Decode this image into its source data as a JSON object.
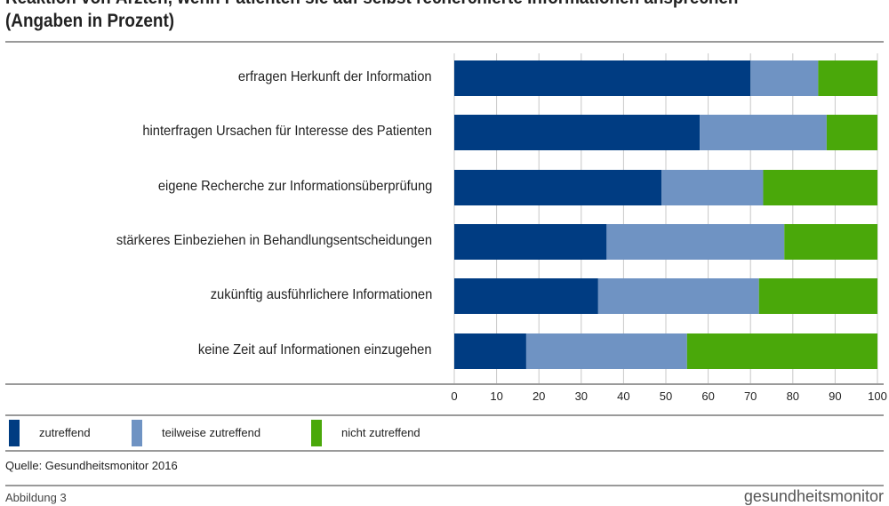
{
  "chart_data": {
    "type": "bar",
    "orientation": "horizontal",
    "stacked": true,
    "title": "Reaktion von Ärzten, wenn Patienten sie auf selbst recherchierte Informationen ansprechen",
    "subtitle": "(Angaben in Prozent)",
    "categories": [
      "erfragen Herkunft der Information",
      "hinterfragen Ursachen für Interesse des Patienten",
      "eigene Recherche zur Informationsüberprüfung",
      "stärkeres Einbeziehen in Behandlungsentscheidungen",
      "zukünftig ausführlichere Informationen",
      "keine Zeit auf Informationen einzugehen"
    ],
    "series": [
      {
        "name": "zutreffend",
        "color": "#003c82",
        "values": [
          70,
          58,
          49,
          36,
          34,
          17
        ]
      },
      {
        "name": "teilweise zutreffend",
        "color": "#6f93c3",
        "values": [
          16,
          30,
          24,
          42,
          38,
          38
        ]
      },
      {
        "name": "nicht zutreffend",
        "color": "#4aa80a",
        "values": [
          14,
          12,
          27,
          22,
          28,
          45
        ]
      }
    ],
    "xlim": [
      0,
      100
    ],
    "xticks": [
      "0",
      "10",
      "20",
      "30",
      "40",
      "50",
      "60",
      "70",
      "80",
      "90",
      "100"
    ],
    "grid": true,
    "legend": "bottom"
  },
  "source": "Quelle: Gesundheitsmonitor 2016",
  "footer_left": "Abbildung 3",
  "footer_right": "gesundheitsmonitor"
}
